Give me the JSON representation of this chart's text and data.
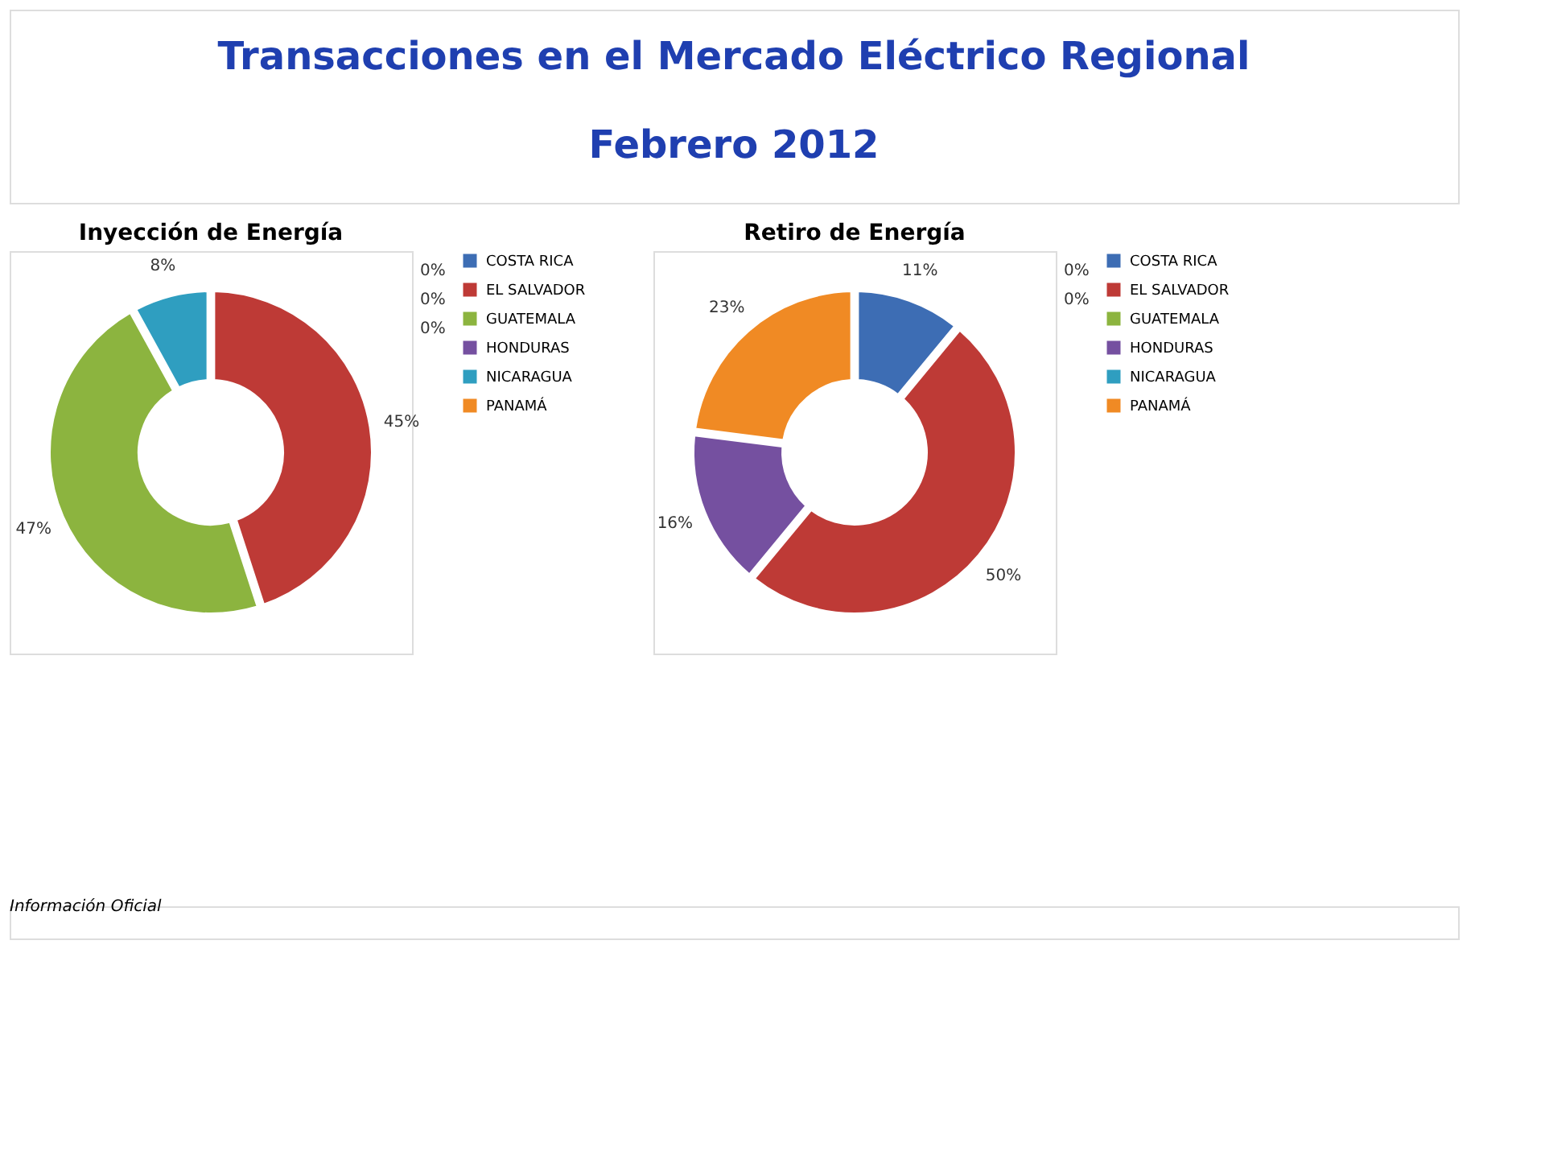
{
  "chart_data": [
    {
      "type": "other",
      "title": "Transacciones en el Mercado Eléctrico Regional",
      "subtitle": "Febrero 2012",
      "annotations": [
        "Información Oficial"
      ]
    },
    {
      "type": "donut",
      "title": "Inyección de Energía",
      "categories": [
        "COSTA RICA",
        "EL SALVADOR",
        "GUATEMALA",
        "HONDURAS",
        "NICARAGUA",
        "PANAMÁ"
      ],
      "values": [
        0,
        45,
        47,
        0,
        8,
        0
      ],
      "value_labels": [
        "0%",
        "45%",
        "47%",
        "0%",
        "8%",
        "0%"
      ],
      "colors": [
        "#3d6db4",
        "#be3a36",
        "#8cb43f",
        "#7550a0",
        "#2f9ec0",
        "#f08a24"
      ],
      "legend": "right"
    },
    {
      "type": "donut",
      "title": "Retiro de Energía",
      "categories": [
        "COSTA RICA",
        "EL SALVADOR",
        "GUATEMALA",
        "HONDURAS",
        "NICARAGUA",
        "PANAMÁ"
      ],
      "values": [
        11,
        50,
        0,
        16,
        0,
        23
      ],
      "value_labels": [
        "11%",
        "50%",
        "0%",
        "16%",
        "0%",
        "23%"
      ],
      "colors": [
        "#3d6db4",
        "#be3a36",
        "#8cb43f",
        "#7550a0",
        "#2f9ec0",
        "#f08a24"
      ],
      "legend": "right"
    }
  ]
}
